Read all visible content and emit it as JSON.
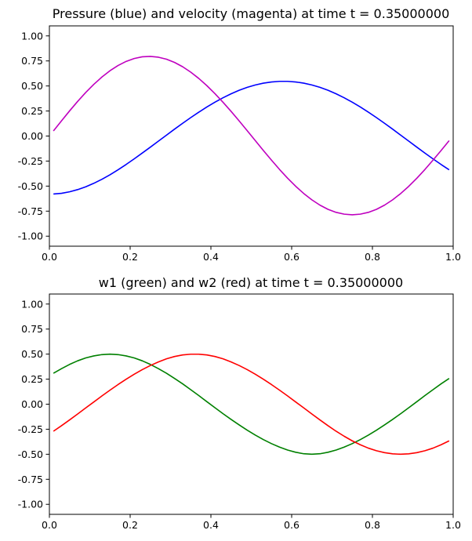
{
  "chart_data": [
    {
      "type": "line",
      "title": "Pressure (blue) and velocity (magenta) at time t =     0.35000000",
      "xlabel": "",
      "ylabel": "",
      "xlim": [
        0.0,
        1.0
      ],
      "ylim": [
        -1.1,
        1.1
      ],
      "xticks": [
        "0.0",
        "0.2",
        "0.4",
        "0.6",
        "0.8",
        "1.0"
      ],
      "yticks": [
        "1.00",
        "0.75",
        "0.50",
        "0.25",
        "0.00",
        "-0.25",
        "-0.50",
        "-0.75",
        "-1.00"
      ],
      "grid": false,
      "x": [
        0.01,
        0.03,
        0.05,
        0.07,
        0.09,
        0.11,
        0.13,
        0.15,
        0.17,
        0.19,
        0.21,
        0.23,
        0.25,
        0.27,
        0.29,
        0.31,
        0.33,
        0.35,
        0.37,
        0.39,
        0.41,
        0.43,
        0.45,
        0.47,
        0.49,
        0.51,
        0.53,
        0.55,
        0.57,
        0.59,
        0.61,
        0.63,
        0.65,
        0.67,
        0.69,
        0.71,
        0.73,
        0.75,
        0.77,
        0.79,
        0.81,
        0.83,
        0.85,
        0.87,
        0.89,
        0.91,
        0.93,
        0.95,
        0.97,
        0.99
      ],
      "series": [
        {
          "color": "#0000ff",
          "values": [
            -0.579,
            -0.572,
            -0.557,
            -0.535,
            -0.507,
            -0.472,
            -0.432,
            -0.387,
            -0.337,
            -0.284,
            -0.228,
            -0.17,
            -0.111,
            -0.051,
            0.009,
            0.069,
            0.127,
            0.184,
            0.238,
            0.29,
            0.338,
            0.382,
            0.422,
            0.457,
            0.486,
            0.51,
            0.528,
            0.54,
            0.546,
            0.546,
            0.54,
            0.528,
            0.51,
            0.486,
            0.457,
            0.422,
            0.382,
            0.338,
            0.29,
            0.238,
            0.184,
            0.127,
            0.069,
            0.009,
            -0.051,
            -0.111,
            -0.17,
            -0.228,
            -0.284,
            -0.337
          ]
        },
        {
          "color": "#bf00bf",
          "values": [
            0.051,
            0.152,
            0.251,
            0.346,
            0.435,
            0.516,
            0.589,
            0.652,
            0.704,
            0.745,
            0.774,
            0.791,
            0.795,
            0.787,
            0.767,
            0.735,
            0.692,
            0.638,
            0.575,
            0.503,
            0.423,
            0.337,
            0.246,
            0.151,
            0.053,
            -0.046,
            -0.145,
            -0.241,
            -0.334,
            -0.421,
            -0.502,
            -0.574,
            -0.637,
            -0.69,
            -0.732,
            -0.762,
            -0.78,
            -0.786,
            -0.78,
            -0.762,
            -0.732,
            -0.69,
            -0.637,
            -0.574,
            -0.502,
            -0.421,
            -0.334,
            -0.241,
            -0.145,
            -0.046
          ]
        }
      ]
    },
    {
      "type": "line",
      "title": "w1 (green) and w2 (red) at time t =     0.35000000",
      "xlabel": "",
      "ylabel": "",
      "xlim": [
        0.0,
        1.0
      ],
      "ylim": [
        -1.1,
        1.1
      ],
      "xticks": [
        "0.0",
        "0.2",
        "0.4",
        "0.6",
        "0.8",
        "1.0"
      ],
      "yticks": [
        "1.00",
        "0.75",
        "0.50",
        "0.25",
        "0.00",
        "-0.25",
        "-0.50",
        "-0.75",
        "-1.00"
      ],
      "grid": false,
      "x": [
        0.01,
        0.03,
        0.05,
        0.07,
        0.09,
        0.11,
        0.13,
        0.15,
        0.17,
        0.19,
        0.21,
        0.23,
        0.25,
        0.27,
        0.29,
        0.31,
        0.33,
        0.35,
        0.37,
        0.39,
        0.41,
        0.43,
        0.45,
        0.47,
        0.49,
        0.51,
        0.53,
        0.55,
        0.57,
        0.59,
        0.61,
        0.63,
        0.65,
        0.67,
        0.69,
        0.71,
        0.73,
        0.75,
        0.77,
        0.79,
        0.81,
        0.83,
        0.85,
        0.87,
        0.89,
        0.91,
        0.93,
        0.95,
        0.97,
        0.99
      ],
      "series": [
        {
          "color": "#008000",
          "values": [
            0.309,
            0.355,
            0.397,
            0.433,
            0.462,
            0.482,
            0.495,
            0.5,
            0.495,
            0.482,
            0.462,
            0.433,
            0.397,
            0.355,
            0.309,
            0.257,
            0.203,
            0.145,
            0.086,
            0.025,
            -0.035,
            -0.095,
            -0.152,
            -0.207,
            -0.26,
            -0.309,
            -0.354,
            -0.394,
            -0.429,
            -0.458,
            -0.48,
            -0.495,
            -0.5,
            -0.495,
            -0.48,
            -0.458,
            -0.429,
            -0.394,
            -0.354,
            -0.309,
            -0.26,
            -0.207,
            -0.152,
            -0.095,
            -0.035,
            0.025,
            0.086,
            0.145,
            0.203,
            0.257
          ]
        },
        {
          "color": "#ff0000",
          "values": [
            -0.27,
            -0.215,
            -0.157,
            -0.098,
            -0.037,
            0.022,
            0.082,
            0.14,
            0.196,
            0.249,
            0.299,
            0.345,
            0.386,
            0.422,
            0.453,
            0.476,
            0.492,
            0.499,
            0.499,
            0.492,
            0.476,
            0.453,
            0.422,
            0.386,
            0.345,
            0.299,
            0.249,
            0.196,
            0.14,
            0.082,
            0.022,
            -0.037,
            -0.098,
            -0.157,
            -0.215,
            -0.27,
            -0.32,
            -0.366,
            -0.405,
            -0.439,
            -0.465,
            -0.484,
            -0.496,
            -0.5,
            -0.496,
            -0.484,
            -0.465,
            -0.439,
            -0.405,
            -0.366
          ]
        }
      ]
    }
  ]
}
